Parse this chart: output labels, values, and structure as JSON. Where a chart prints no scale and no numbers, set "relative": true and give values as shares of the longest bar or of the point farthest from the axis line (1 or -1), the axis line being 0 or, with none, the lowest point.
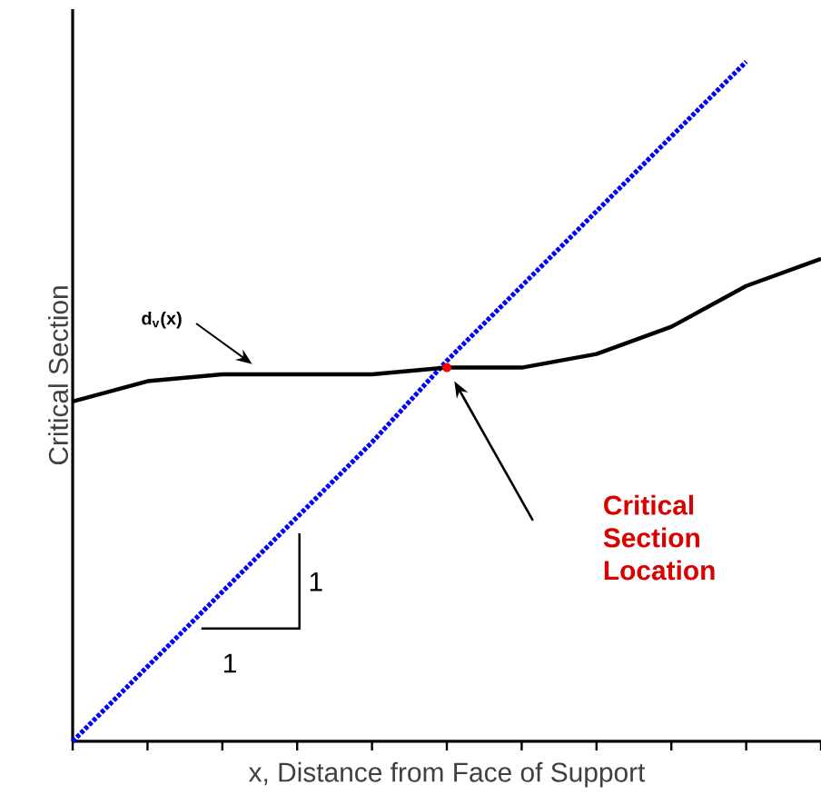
{
  "chart_data": {
    "type": "line",
    "relative": true,
    "tick_labels": false,
    "xlabel": "x, Distance from Face of Support",
    "ylabel": "Critical Section",
    "categories": [
      null,
      null,
      null,
      null,
      null,
      null,
      null,
      null,
      null,
      null,
      null
    ],
    "series": [
      {
        "color": "#0000ff",
        "line_style": "dotted",
        "values": [
          0,
          0.11,
          0.22,
          0.33,
          0.44,
          0.56,
          0.67,
          0.78,
          0.89,
          1,
          null
        ]
      },
      {
        "color": "#000000",
        "line_style": "solid",
        "values": [
          0.5,
          0.53,
          0.54,
          0.54,
          0.54,
          0.55,
          0.55,
          0.57,
          0.61,
          0.67,
          0.71
        ]
      }
    ],
    "annotations": [
      "d$_{v}$(x)",
      "Critical Section Location",
      "1",
      "1"
    ]
  }
}
